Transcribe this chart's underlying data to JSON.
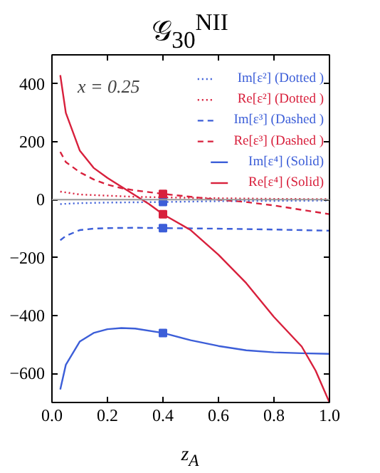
{
  "chart_data": {
    "type": "line",
    "title": "𝒢$_{30}$$^{NII}$",
    "xlabel": "z$_{A}$",
    "annotations": [
      "x = 0.25"
    ],
    "xlim": [
      0,
      1
    ],
    "ylim": [
      -700,
      500
    ],
    "xticks": [
      {
        "value": 0,
        "label": "0.0"
      },
      0.2,
      0.4,
      0.6,
      0.8,
      {
        "value": 1,
        "label": "1.0"
      }
    ],
    "yticks": [
      {
        "value": -600,
        "label": "−600"
      },
      {
        "value": -400,
        "label": "−400"
      },
      {
        "value": -200,
        "label": "−200"
      },
      0,
      200,
      400
    ],
    "grid": false,
    "legend": "top right",
    "marker": "none",
    "ref_lines": [
      {
        "axis": "y",
        "value": 0,
        "color": "#999999"
      }
    ],
    "series": [
      {
        "name": "Im[ε²] (Dotted )",
        "color": "#3c5ed8",
        "line_style": "dotted",
        "x": [
          0.03,
          0.1,
          0.2,
          0.4,
          0.6,
          0.8,
          1.0
        ],
        "values": [
          -15,
          -12,
          -10,
          -8,
          -5,
          -4,
          -3
        ]
      },
      {
        "name": "Re[ε²] (Dotted )",
        "color": "#d8203c",
        "line_style": "dotted",
        "x": [
          0.03,
          0.1,
          0.2,
          0.3,
          0.4,
          0.6,
          0.8,
          1.0
        ],
        "values": [
          28,
          18,
          14,
          10,
          8,
          5,
          3,
          2
        ]
      },
      {
        "name": "Im[ε³] (Dashed )",
        "color": "#3c5ed8",
        "line_style": "dashed",
        "x": [
          0.03,
          0.05,
          0.1,
          0.15,
          0.2,
          0.3,
          0.4,
          0.6,
          0.8,
          1.0
        ],
        "values": [
          -140,
          -125,
          -105,
          -100,
          -98,
          -97,
          -98,
          -100,
          -103,
          -107
        ]
      },
      {
        "name": "Re[ε³] (Dashed )",
        "color": "#d8203c",
        "line_style": "dashed",
        "x": [
          0.03,
          0.05,
          0.1,
          0.15,
          0.2,
          0.25,
          0.3,
          0.4,
          0.5,
          0.6,
          0.7,
          0.8,
          0.9,
          1.0
        ],
        "values": [
          165,
          130,
          95,
          70,
          52,
          40,
          32,
          20,
          10,
          0,
          -8,
          -20,
          -35,
          -50
        ]
      },
      {
        "name": "Im[ε⁴] (Solid)",
        "color": "#3c5ed8",
        "line_style": "solid",
        "x": [
          0.03,
          0.05,
          0.1,
          0.15,
          0.2,
          0.25,
          0.3,
          0.4,
          0.5,
          0.6,
          0.7,
          0.8,
          0.9,
          1.0
        ],
        "values": [
          -655,
          -570,
          -490,
          -460,
          -447,
          -443,
          -445,
          -460,
          -485,
          -505,
          -520,
          -527,
          -530,
          -532
        ]
      },
      {
        "name": "Re[ε⁴] (Solid)",
        "color": "#d8203c",
        "line_style": "solid",
        "x": [
          0.03,
          0.05,
          0.1,
          0.15,
          0.2,
          0.25,
          0.3,
          0.35,
          0.4,
          0.5,
          0.6,
          0.7,
          0.8,
          0.9,
          0.95,
          1.0
        ],
        "values": [
          430,
          300,
          170,
          110,
          75,
          45,
          15,
          -15,
          -50,
          -105,
          -190,
          -288,
          -405,
          -507,
          -590,
          -700
        ]
      },
      {
        "type": "scatter",
        "marker": "square",
        "color": "#3c5ed8",
        "x": [
          0.4,
          0.4,
          0.4
        ],
        "values": [
          -8,
          -98,
          -460
        ]
      },
      {
        "type": "scatter",
        "marker": "square",
        "color": "#d8203c",
        "x": [
          0.4,
          0.4
        ],
        "values": [
          20,
          -50
        ]
      }
    ]
  }
}
